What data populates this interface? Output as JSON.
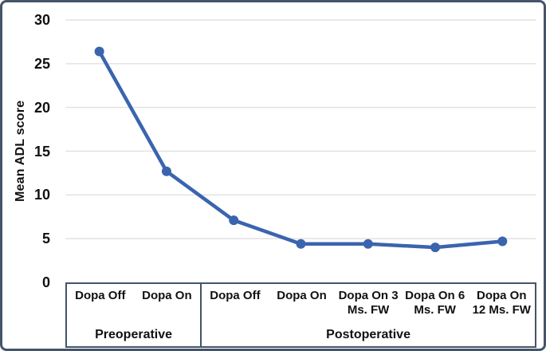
{
  "chart_data": {
    "type": "line",
    "title": "",
    "ylabel": "Mean ADL score",
    "xlabel": "",
    "ylim": [
      0,
      30
    ],
    "yticks": [
      0,
      5,
      10,
      15,
      20,
      25,
      30
    ],
    "grid": true,
    "legend": false,
    "groups": [
      {
        "label": "Preoperative",
        "categories": [
          "Dopa Off",
          "Dopa On"
        ]
      },
      {
        "label": "Postoperative",
        "categories": [
          "Dopa Off",
          "Dopa On",
          "Dopa On 3 Ms. FW",
          "Dopa On 6 Ms. FW",
          "Dopa On 12 Ms. FW"
        ]
      }
    ],
    "series": [
      {
        "name": "Mean ADL score",
        "values": [
          26.4,
          12.7,
          7.1,
          4.4,
          4.4,
          4.0,
          4.7
        ]
      }
    ]
  },
  "colors": {
    "line": "#3B64AE",
    "marker": "#3B64AE",
    "frame_border": "#44546A",
    "table_border": "#44546A",
    "gridline": "#E2E2E2",
    "text": "#111111",
    "background": "#FFFFFF"
  }
}
